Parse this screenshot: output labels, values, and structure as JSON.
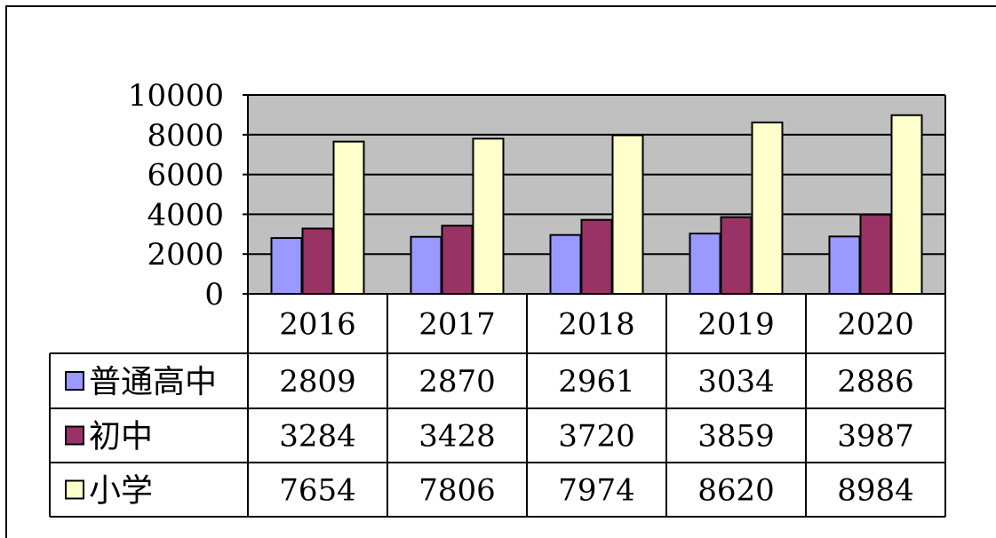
{
  "chart_data": {
    "type": "bar",
    "categories": [
      "2016",
      "2017",
      "2018",
      "2019",
      "2020"
    ],
    "series": [
      {
        "name": "普通高中",
        "color": "#9999ff",
        "values": [
          2809,
          2870,
          2961,
          3034,
          2886
        ]
      },
      {
        "name": "初中",
        "color": "#993366",
        "values": [
          3284,
          3428,
          3720,
          3859,
          3987
        ]
      },
      {
        "name": "小学",
        "color": "#ffffcc",
        "values": [
          7654,
          7806,
          7974,
          8620,
          8984
        ]
      }
    ],
    "ylim": [
      0,
      10000
    ],
    "yticks": [
      "0",
      "2000",
      "4000",
      "6000",
      "8000",
      "10000"
    ],
    "table": {
      "rows": [
        [
          "2809",
          "2870",
          "2961",
          "3034",
          "2886"
        ],
        [
          "3284",
          "3428",
          "3720",
          "3859",
          "3987"
        ],
        [
          "7654",
          "7806",
          "7974",
          "8620",
          "8984"
        ]
      ]
    },
    "plot_background": "#c0c0c0",
    "gridlines": true
  }
}
